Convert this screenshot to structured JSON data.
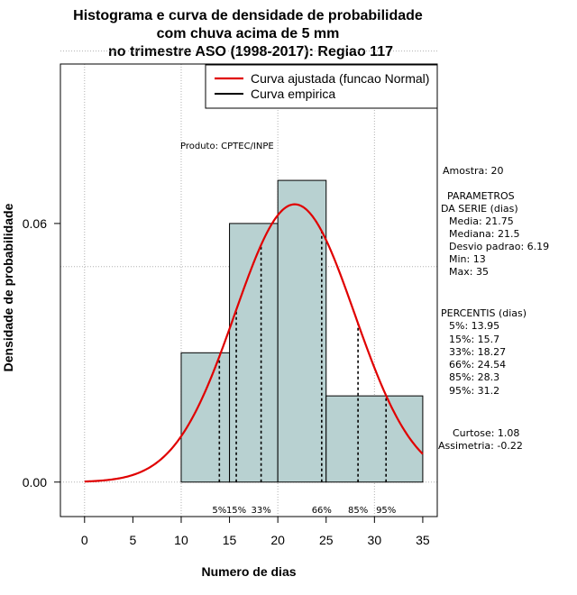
{
  "chart_data": {
    "type": "bar",
    "title_lines": [
      "Histograma e curva de densidade de probabilidade",
      "com chuva acima de 5 mm",
      "no trimestre ASO (1998-2017): Regiao 117"
    ],
    "xlabel": "Numero de dias",
    "ylabel": "Densidade de probabilidade",
    "xlim": [
      -2.5,
      36.5
    ],
    "ylim": [
      -0.008,
      0.097
    ],
    "x_ticks": [
      0,
      5,
      10,
      15,
      20,
      25,
      30,
      35
    ],
    "y_ticks": [
      0.0,
      0.06
    ],
    "y_tick_labels": [
      "0.00",
      "0.06"
    ],
    "grid_x": [
      0,
      10,
      20,
      30
    ],
    "grid_y": [
      0.0,
      0.05,
      0.1
    ],
    "histogram": {
      "bins": [
        [
          10,
          15
        ],
        [
          15,
          20
        ],
        [
          20,
          25
        ],
        [
          25,
          35
        ]
      ],
      "density": [
        0.03,
        0.06,
        0.07,
        0.02
      ],
      "fill": "#b8d1d1"
    },
    "normal_curve": {
      "name": "Curva ajustada (funcao Normal)",
      "mean": 21.75,
      "sd": 6.19,
      "x_range": [
        0,
        35
      ],
      "color": "#e00000"
    },
    "legend": [
      {
        "label": "Curva ajustada (funcao Normal)",
        "color": "#e00000"
      },
      {
        "label": "Curva empirica",
        "color": "#000000"
      }
    ],
    "percentiles": [
      {
        "label": "5%",
        "value": 13.95
      },
      {
        "label": "15%",
        "value": 15.7
      },
      {
        "label": "33%",
        "value": 18.27
      },
      {
        "label": "66%",
        "value": 24.54
      },
      {
        "label": "85%",
        "value": 28.3
      },
      {
        "label": "95%",
        "value": 31.2
      }
    ],
    "producer": "Produto: CPTEC/INPE"
  },
  "side_panel": {
    "amostra": "Amostra: 20",
    "params_title": "PARAMETROS",
    "params_subtitle": "DA SERIE (dias)",
    "params": [
      "Media: 21.75",
      "Mediana: 21.5",
      "Desvio padrao: 6.19",
      "Min: 13",
      "Max: 35"
    ],
    "percentis_title": "PERCENTIS (dias)",
    "percentis": [
      "5%: 13.95",
      "15%: 15.7",
      "33%: 18.27",
      "66%: 24.54",
      "85%: 28.3",
      "95%: 31.2"
    ],
    "curtose": "Curtose: 1.08",
    "assimetria": "Assimetria: -0.22"
  }
}
